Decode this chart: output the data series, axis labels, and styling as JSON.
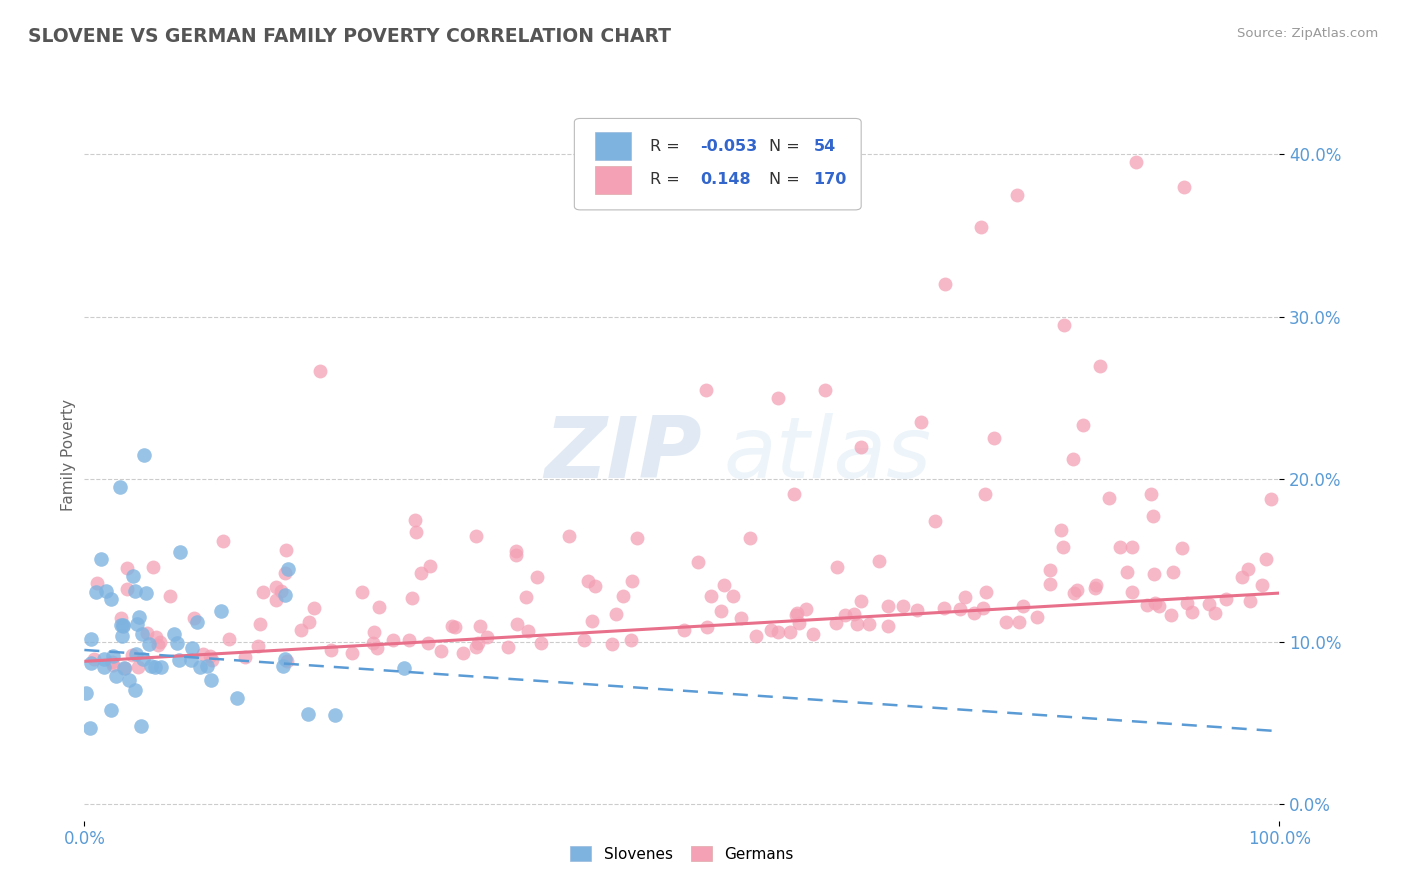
{
  "title": "SLOVENE VS GERMAN FAMILY POVERTY CORRELATION CHART",
  "source_text": "Source: ZipAtlas.com",
  "ylabel": "Family Poverty",
  "xlim": [
    0.0,
    1.0
  ],
  "ylim": [
    -0.01,
    0.44
  ],
  "yticks": [
    0.0,
    0.1,
    0.2,
    0.3,
    0.4
  ],
  "ytick_labels": [
    "0.0%",
    "10.0%",
    "20.0%",
    "30.0%",
    "40.0%"
  ],
  "xticks": [
    0.0,
    1.0
  ],
  "xtick_labels": [
    "0.0%",
    "100.0%"
  ],
  "slovene_color": "#7EB3E0",
  "german_color": "#F4A0B5",
  "legend_slovene_label": "Slovenes",
  "legend_german_label": "Germans",
  "slovene_R": -0.053,
  "german_R": 0.148,
  "background_color": "#ffffff",
  "grid_color": "#cccccc",
  "watermark_zip": "ZIP",
  "watermark_atlas": "atlas",
  "title_color": "#555555",
  "axis_label_color": "#666666",
  "tick_label_color": "#5B9BD5",
  "source_color": "#999999",
  "legend_text_color": "#333333",
  "legend_value_color": "#3366CC"
}
